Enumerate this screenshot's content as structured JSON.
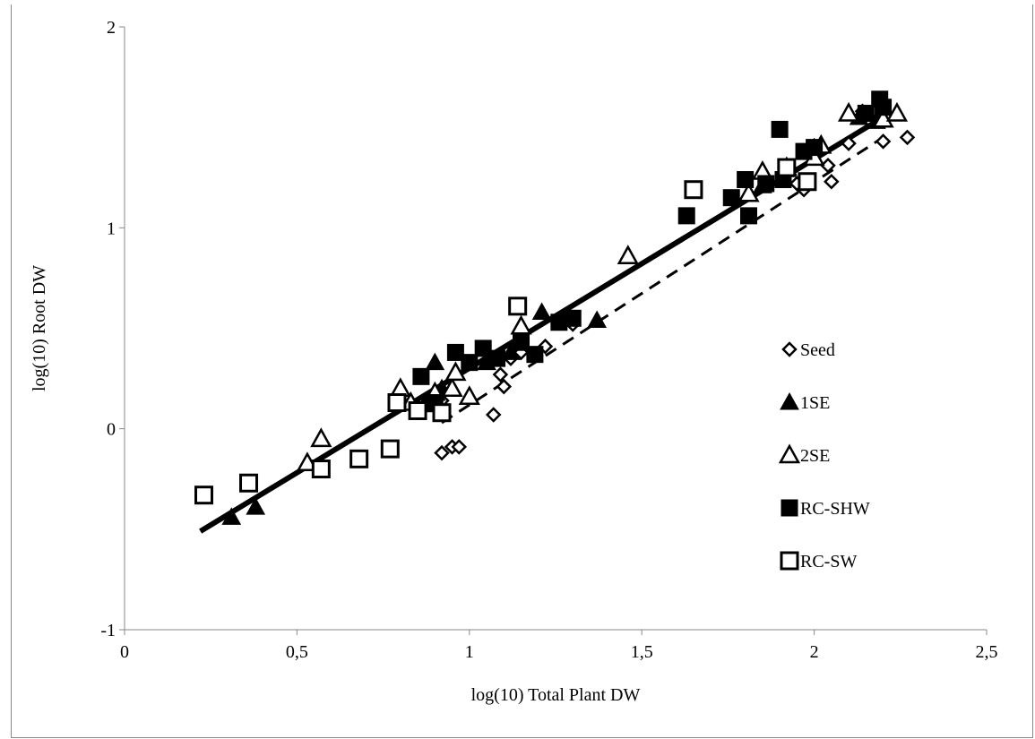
{
  "chart_data": {
    "type": "scatter",
    "xlabel": "log(10) Total Plant DW",
    "ylabel": "log(10)  Root DW",
    "xlim": [
      0,
      2.5
    ],
    "ylim": [
      -1,
      2
    ],
    "x_ticks": [
      "0",
      "0,5",
      "1",
      "1,5",
      "2",
      "2,5"
    ],
    "y_ticks": [
      "-1",
      "0",
      "1",
      "2"
    ],
    "grid": false,
    "legend_placement": "right",
    "series": [
      {
        "name": "Seed",
        "marker": "diamond-open",
        "points": [
          [
            0.92,
            -0.12
          ],
          [
            0.95,
            -0.09
          ],
          [
            0.97,
            -0.09
          ],
          [
            1.07,
            0.07
          ],
          [
            1.1,
            0.21
          ],
          [
            1.09,
            0.27
          ],
          [
            1.15,
            0.38
          ],
          [
            1.22,
            0.41
          ],
          [
            1.3,
            0.52
          ],
          [
            1.97,
            1.19
          ],
          [
            2.05,
            1.23
          ],
          [
            2.04,
            1.31
          ],
          [
            2.2,
            1.43
          ],
          [
            2.27,
            1.45
          ],
          [
            2.1,
            1.42
          ],
          [
            2.14,
            1.58
          ],
          [
            1.95,
            1.22
          ],
          [
            0.92,
            0.14
          ],
          [
            1.12,
            0.35
          ]
        ]
      },
      {
        "name": "1SE",
        "marker": "triangle-filled",
        "points": [
          [
            0.31,
            -0.44
          ],
          [
            0.38,
            -0.39
          ],
          [
            0.87,
            0.12
          ],
          [
            0.9,
            0.33
          ],
          [
            1.12,
            0.38
          ],
          [
            1.21,
            0.58
          ],
          [
            1.37,
            0.54
          ],
          [
            1.85,
            1.21
          ],
          [
            1.92,
            1.29
          ],
          [
            2.0,
            1.4
          ],
          [
            2.13,
            1.55
          ],
          [
            2.18,
            1.53
          ],
          [
            0.92,
            0.2
          ],
          [
            1.05,
            0.33
          ]
        ]
      },
      {
        "name": "2SE",
        "marker": "triangle-open",
        "points": [
          [
            0.53,
            -0.17
          ],
          [
            0.57,
            -0.05
          ],
          [
            0.8,
            0.2
          ],
          [
            0.83,
            0.13
          ],
          [
            0.9,
            0.18
          ],
          [
            0.95,
            0.2
          ],
          [
            1.0,
            0.16
          ],
          [
            1.15,
            0.51
          ],
          [
            1.46,
            0.86
          ],
          [
            1.81,
            1.17
          ],
          [
            1.85,
            1.28
          ],
          [
            1.92,
            1.3
          ],
          [
            2.0,
            1.35
          ],
          [
            2.02,
            1.41
          ],
          [
            2.1,
            1.57
          ],
          [
            2.2,
            1.54
          ],
          [
            2.24,
            1.57
          ],
          [
            0.96,
            0.28
          ]
        ]
      },
      {
        "name": "RC-SHW",
        "marker": "square-filled",
        "points": [
          [
            0.86,
            0.26
          ],
          [
            0.9,
            0.13
          ],
          [
            0.96,
            0.38
          ],
          [
            1.0,
            0.33
          ],
          [
            1.04,
            0.4
          ],
          [
            1.08,
            0.35
          ],
          [
            1.15,
            0.43
          ],
          [
            1.19,
            0.37
          ],
          [
            1.26,
            0.53
          ],
          [
            1.3,
            0.55
          ],
          [
            1.63,
            1.06
          ],
          [
            1.76,
            1.15
          ],
          [
            1.81,
            1.06
          ],
          [
            1.8,
            1.24
          ],
          [
            1.86,
            1.22
          ],
          [
            1.9,
            1.49
          ],
          [
            1.91,
            1.24
          ],
          [
            1.97,
            1.38
          ],
          [
            2.0,
            1.4
          ],
          [
            2.15,
            1.57
          ],
          [
            2.19,
            1.64
          ],
          [
            2.2,
            1.6
          ]
        ]
      },
      {
        "name": "RC-SW",
        "marker": "square-open",
        "points": [
          [
            0.23,
            -0.33
          ],
          [
            0.36,
            -0.27
          ],
          [
            0.57,
            -0.2
          ],
          [
            0.68,
            -0.15
          ],
          [
            0.77,
            -0.1
          ],
          [
            0.79,
            0.13
          ],
          [
            0.85,
            0.09
          ],
          [
            0.92,
            0.08
          ],
          [
            1.14,
            0.61
          ],
          [
            1.65,
            1.19
          ],
          [
            1.92,
            1.3
          ],
          [
            1.98,
            1.23
          ]
        ]
      }
    ],
    "trendlines": [
      {
        "style": "solid",
        "x": [
          0.22,
          2.2
        ],
        "y": [
          -0.51,
          1.55
        ]
      },
      {
        "style": "dashed",
        "x": [
          0.92,
          2.2
        ],
        "y": [
          0.03,
          1.45
        ]
      }
    ]
  }
}
